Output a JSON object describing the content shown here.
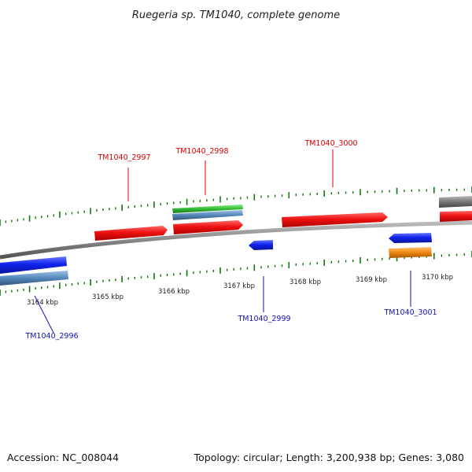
{
  "map": {
    "title": "Ruegeria sp. TM1040, complete genome",
    "accession": "Accession: NC_008044",
    "summary": "Topology: circular; Length: 3,200,938 bp; Genes: 3,080"
  },
  "colors": {
    "forward_label": "#dd0000",
    "reverse_label": "#1111bb",
    "forward_feature": "#ee1111",
    "reverse_feature": "#1122ee",
    "tick": "#117711",
    "backbone": "#888888",
    "feature_green": "#33bb33",
    "feature_steelblue": "#5588bb",
    "feature_orange": "#ee8811",
    "feature_gray": "#777777"
  },
  "scale": {
    "unit": "kbp",
    "labels": [
      "3164 kbp",
      "3165 kbp",
      "3166 kbp",
      "3167 kbp",
      "3168 kbp",
      "3169 kbp",
      "3170 kbp"
    ]
  },
  "genes": [
    {
      "id": "TM1040_2996",
      "strand": "reverse"
    },
    {
      "id": "TM1040_2997",
      "strand": "forward"
    },
    {
      "id": "TM1040_2998",
      "strand": "forward"
    },
    {
      "id": "TM1040_2999",
      "strand": "reverse"
    },
    {
      "id": "TM1040_3000",
      "strand": "forward"
    },
    {
      "id": "TM1040_3001",
      "strand": "reverse"
    }
  ]
}
